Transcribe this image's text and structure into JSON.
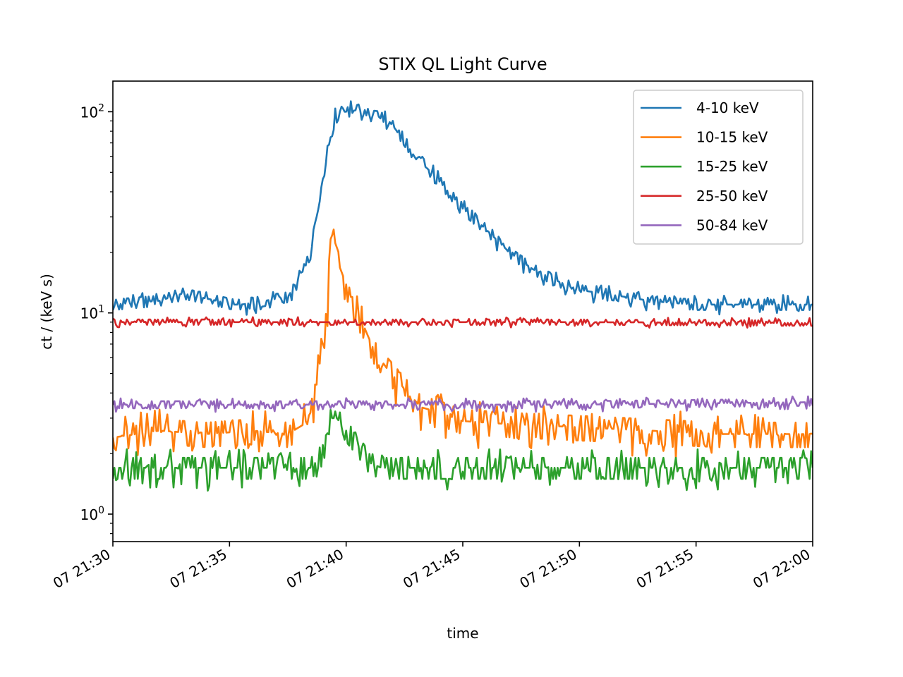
{
  "chart_data": {
    "type": "line",
    "title": "STIX QL Light Curve",
    "xlabel": "time",
    "ylabel": "ct / (keV s)",
    "yscale": "log",
    "ylim": [
      0.73,
      142
    ],
    "xlim_minutes": [
      0,
      30
    ],
    "x_unit": "minutes after 07 21:30",
    "x_tick_labels": [
      "07 21:30",
      "07 21:35",
      "07 21:40",
      "07 21:45",
      "07 21:50",
      "07 21:55",
      "07 22:00"
    ],
    "x_tick_values": [
      0,
      5,
      10,
      15,
      20,
      25,
      30
    ],
    "y_tick_labels": [
      {
        "base": "10",
        "exp": "0",
        "value": 1
      },
      {
        "base": "10",
        "exp": "1",
        "value": 10
      },
      {
        "base": "10",
        "exp": "2",
        "value": 100
      }
    ],
    "grid": false,
    "legend_position": "top-right",
    "series": [
      {
        "name": "4-10 keV",
        "color": "#1f77b4",
        "noise": 0.06,
        "x": [
          0,
          2,
          3,
          5.2,
          5.5,
          7.5,
          8.2,
          8.5,
          8.7,
          8.9,
          9.3,
          9.6,
          10,
          10.5,
          11,
          11.5,
          12,
          12.5,
          13,
          13.5,
          14,
          15,
          16,
          17,
          18,
          19,
          20,
          21,
          22,
          23,
          24,
          25,
          26,
          27,
          28,
          30
        ],
        "values": [
          11,
          11.5,
          12.5,
          11,
          11,
          12,
          16.5,
          20,
          30,
          40,
          72,
          100,
          100,
          102,
          102,
          100,
          85,
          72,
          58,
          52,
          45,
          33,
          26,
          20,
          16.5,
          14.5,
          13,
          12.5,
          12,
          11.5,
          11.2,
          11,
          11,
          11,
          11,
          11
        ]
      },
      {
        "name": "10-15 keV",
        "color": "#ff7f0e",
        "noise": 0.14,
        "x": [
          0,
          2,
          4,
          6,
          7.5,
          8.2,
          8.6,
          8.8,
          9.0,
          9.2,
          9.35,
          9.5,
          9.8,
          10.2,
          10.6,
          11.2,
          11.8,
          12.5,
          13.2,
          14,
          15,
          17,
          20,
          23,
          26,
          30
        ],
        "values": [
          2.4,
          2.6,
          2.5,
          2.6,
          2.5,
          2.8,
          3.4,
          5.0,
          7.0,
          11,
          25,
          20,
          16,
          12,
          9.5,
          6.5,
          5.2,
          4.2,
          3.4,
          3.2,
          2.9,
          2.8,
          2.7,
          2.6,
          2.5,
          2.5
        ]
      },
      {
        "name": "15-25 keV",
        "color": "#2ca02c",
        "noise": 0.12,
        "x": [
          0,
          3,
          6,
          8.5,
          9.0,
          9.35,
          9.6,
          10,
          10.5,
          11,
          11.5,
          14,
          20,
          25,
          30
        ],
        "values": [
          1.7,
          1.7,
          1.7,
          1.7,
          2.0,
          3.0,
          3.0,
          2.6,
          2.2,
          1.8,
          1.7,
          1.7,
          1.7,
          1.7,
          1.7
        ]
      },
      {
        "name": "25-50 keV",
        "color": "#d62728",
        "noise": 0.03,
        "x": [
          0,
          10,
          20,
          30
        ],
        "values": [
          9.0,
          9.0,
          9.0,
          8.9
        ]
      },
      {
        "name": "50-84 keV",
        "color": "#9467bd",
        "noise": 0.04,
        "x": [
          0,
          10,
          20,
          30
        ],
        "values": [
          3.5,
          3.5,
          3.5,
          3.6
        ]
      }
    ]
  }
}
